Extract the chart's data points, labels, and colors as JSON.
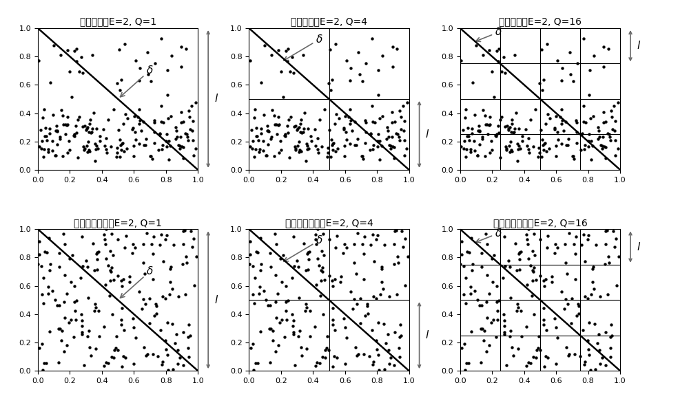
{
  "titles_row1": [
    "热轧数据，E=2, Q=1",
    "热轧数据，E=2, Q=4",
    "热轧数据，E=2, Q=16"
  ],
  "titles_row2": [
    "随机分布数据，E=2, Q=1",
    "随机分布数据，E=2, Q=4",
    "随机分布数据，E=2, Q=16"
  ],
  "Q_values": [
    1,
    4,
    16
  ],
  "xticks": [
    0,
    0.2,
    0.4,
    0.6,
    0.8,
    1
  ],
  "yticks": [
    0,
    0.2,
    0.4,
    0.6,
    0.8,
    1
  ],
  "n_points": 200,
  "delta_label": "δ",
  "l_label": "l",
  "scatter_color": "black",
  "scatter_size": 10,
  "grid_color": "black",
  "grid_lw": 0.8,
  "diag_color": "black",
  "diag_lw": 1.8,
  "l_spans_q1": [
    0.0,
    1.0
  ],
  "l_spans_q4": [
    0.0,
    0.5
  ],
  "l_spans_q16": [
    0.75,
    1.0
  ],
  "delta_q1": [
    0.68,
    0.68,
    0.5,
    0.5
  ],
  "delta_q4": [
    0.42,
    0.9,
    0.2,
    0.76
  ],
  "delta_q16": [
    0.22,
    0.95,
    0.08,
    0.9
  ]
}
